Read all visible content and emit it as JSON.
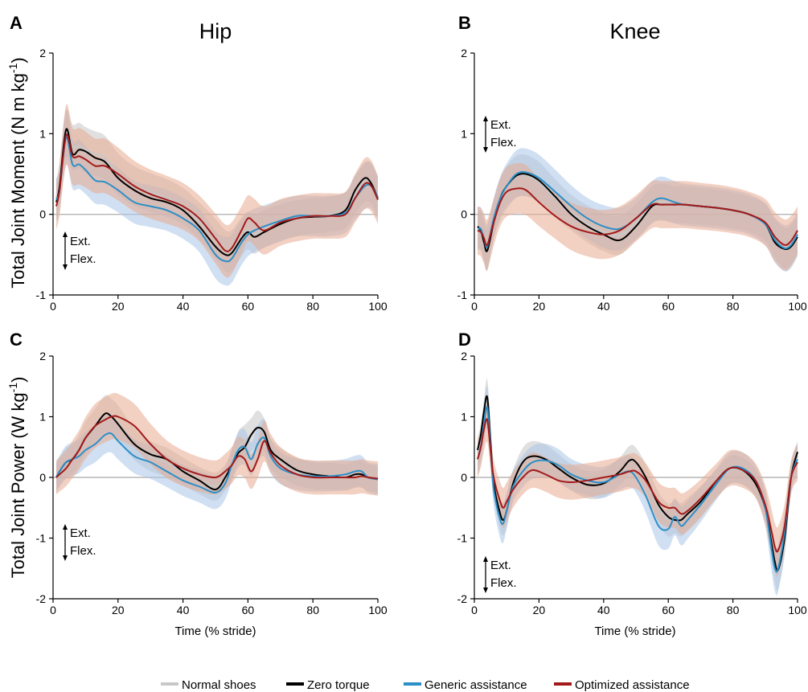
{
  "legend": [
    {
      "label": "Normal shoes",
      "color": "#c8c8c8"
    },
    {
      "label": "Zero torque",
      "color": "#000000"
    },
    {
      "label": "Generic assistance",
      "color": "#2b8fc8"
    },
    {
      "label": "Optimized assistance",
      "color": "#a31a1a"
    }
  ],
  "columns": {
    "hip": "Hip",
    "knee": "Knee"
  },
  "ylabels": {
    "moment": "Total Joint Moment (N m kg-1)",
    "power": "Total Joint Power (W kg-1)"
  },
  "annotation": {
    "ext": "Ext.",
    "flex": "Flex."
  },
  "xlabel": "Time (% stride)",
  "chart_data": [
    {
      "type": "line",
      "panel": "A",
      "title": "Hip",
      "xlabel": "",
      "ylabel": "Total Joint Moment (N m kg-1)",
      "xlim": [
        0,
        100
      ],
      "ylim": [
        -1,
        2
      ],
      "xticks": [
        0,
        20,
        40,
        60,
        80,
        100
      ],
      "yticks": [
        -1,
        0,
        1,
        2
      ],
      "x": [
        1,
        2,
        4,
        6,
        8,
        10,
        13,
        16,
        20,
        25,
        30,
        35,
        40,
        45,
        50,
        53,
        55,
        58,
        60,
        62,
        65,
        70,
        75,
        80,
        85,
        90,
        93,
        96,
        98,
        100
      ],
      "series": [
        {
          "name": "Normal shoes",
          "values": [
            0.2,
            0.4,
            1.0,
            0.83,
            0.85,
            0.8,
            0.75,
            0.7,
            0.5,
            0.35,
            0.27,
            0.2,
            0.1,
            -0.08,
            -0.3,
            -0.45,
            -0.45,
            -0.28,
            -0.2,
            -0.25,
            -0.18,
            -0.1,
            -0.05,
            -0.02,
            0.0,
            0.05,
            0.25,
            0.4,
            0.38,
            0.22
          ]
        },
        {
          "name": "Zero torque",
          "values": [
            0.15,
            0.35,
            1.05,
            0.75,
            0.8,
            0.78,
            0.7,
            0.65,
            0.45,
            0.3,
            0.2,
            0.15,
            0.05,
            -0.15,
            -0.4,
            -0.5,
            -0.48,
            -0.3,
            -0.22,
            -0.28,
            -0.22,
            -0.12,
            -0.05,
            -0.03,
            -0.02,
            0.05,
            0.3,
            0.45,
            0.38,
            0.2
          ]
        },
        {
          "name": "Generic assistance",
          "values": [
            0.18,
            0.3,
            0.95,
            0.62,
            0.62,
            0.55,
            0.42,
            0.4,
            0.3,
            0.15,
            0.1,
            0.05,
            -0.05,
            -0.2,
            -0.5,
            -0.58,
            -0.55,
            -0.35,
            -0.25,
            -0.2,
            -0.15,
            -0.08,
            -0.02,
            -0.02,
            -0.02,
            0.02,
            0.2,
            0.35,
            0.35,
            0.2
          ]
        },
        {
          "name": "Optimized assistance",
          "values": [
            0.1,
            0.3,
            0.98,
            0.72,
            0.72,
            0.68,
            0.6,
            0.6,
            0.5,
            0.35,
            0.25,
            0.18,
            0.1,
            -0.05,
            -0.3,
            -0.45,
            -0.42,
            -0.2,
            -0.05,
            -0.1,
            -0.2,
            -0.1,
            -0.05,
            -0.02,
            -0.02,
            0.0,
            0.2,
            0.38,
            0.35,
            0.18
          ]
        }
      ]
    },
    {
      "type": "line",
      "panel": "B",
      "title": "Knee",
      "xlabel": "",
      "ylabel": "",
      "xlim": [
        0,
        100
      ],
      "ylim": [
        -1,
        2
      ],
      "xticks": [
        0,
        20,
        40,
        60,
        80,
        100
      ],
      "yticks": [
        -1,
        0,
        1,
        2
      ],
      "x": [
        1,
        2,
        3,
        4,
        6,
        8,
        10,
        13,
        16,
        20,
        25,
        30,
        35,
        40,
        45,
        50,
        55,
        58,
        62,
        65,
        70,
        75,
        80,
        85,
        90,
        93,
        96,
        98,
        100
      ],
      "series": [
        {
          "name": "Normal shoes",
          "values": [
            -0.2,
            -0.2,
            -0.35,
            -0.42,
            -0.05,
            0.2,
            0.35,
            0.47,
            0.48,
            0.4,
            0.2,
            0.02,
            -0.12,
            -0.22,
            -0.26,
            -0.1,
            0.12,
            0.15,
            0.12,
            0.12,
            0.1,
            0.08,
            0.05,
            0.0,
            -0.1,
            -0.3,
            -0.42,
            -0.38,
            -0.25
          ]
        },
        {
          "name": "Zero torque",
          "values": [
            -0.15,
            -0.2,
            -0.35,
            -0.45,
            -0.1,
            0.2,
            0.35,
            0.48,
            0.5,
            0.42,
            0.22,
            0.0,
            -0.15,
            -0.25,
            -0.32,
            -0.15,
            0.1,
            0.12,
            0.12,
            0.12,
            0.1,
            0.08,
            0.05,
            0.0,
            -0.12,
            -0.35,
            -0.43,
            -0.4,
            -0.28
          ]
        },
        {
          "name": "Generic assistance",
          "values": [
            -0.18,
            -0.18,
            -0.3,
            -0.4,
            -0.05,
            0.2,
            0.35,
            0.5,
            0.52,
            0.45,
            0.28,
            0.1,
            -0.05,
            -0.15,
            -0.18,
            -0.05,
            0.15,
            0.2,
            0.15,
            0.12,
            0.1,
            0.08,
            0.05,
            0.0,
            -0.12,
            -0.32,
            -0.42,
            -0.38,
            -0.25
          ]
        },
        {
          "name": "Optimized assistance",
          "values": [
            -0.2,
            -0.22,
            -0.3,
            -0.38,
            -0.1,
            0.15,
            0.28,
            0.32,
            0.3,
            0.15,
            -0.02,
            -0.15,
            -0.22,
            -0.25,
            -0.2,
            -0.05,
            0.12,
            0.12,
            0.12,
            0.12,
            0.1,
            0.08,
            0.05,
            0.0,
            -0.1,
            -0.28,
            -0.38,
            -0.33,
            -0.2
          ]
        }
      ]
    },
    {
      "type": "line",
      "panel": "C",
      "title": "",
      "xlabel": "Time (% stride)",
      "ylabel": "Total Joint Power (W kg-1)",
      "xlim": [
        0,
        100
      ],
      "ylim": [
        -2,
        2
      ],
      "xticks": [
        0,
        20,
        40,
        60,
        80,
        100
      ],
      "yticks": [
        -2,
        -1,
        0,
        1,
        2
      ],
      "x": [
        1,
        2,
        4,
        6,
        8,
        10,
        13,
        16,
        18,
        20,
        25,
        30,
        35,
        40,
        45,
        50,
        53,
        55,
        57,
        59,
        61,
        63,
        65,
        67,
        70,
        75,
        80,
        85,
        90,
        93,
        95,
        97,
        100
      ],
      "series": [
        {
          "name": "Normal shoes",
          "values": [
            0.0,
            0.1,
            0.25,
            0.3,
            0.45,
            0.65,
            0.85,
            1.05,
            1.0,
            0.9,
            0.55,
            0.35,
            0.25,
            0.1,
            -0.05,
            -0.15,
            0.0,
            0.2,
            0.5,
            0.6,
            0.7,
            0.82,
            0.7,
            0.4,
            0.25,
            0.1,
            0.03,
            0.02,
            0.0,
            0.05,
            0.05,
            0.0,
            -0.03
          ]
        },
        {
          "name": "Zero torque",
          "values": [
            0.0,
            0.1,
            0.25,
            0.3,
            0.45,
            0.65,
            0.85,
            1.05,
            1.0,
            0.88,
            0.55,
            0.38,
            0.3,
            0.1,
            -0.05,
            -0.2,
            0.0,
            0.2,
            0.4,
            0.5,
            0.7,
            0.82,
            0.75,
            0.45,
            0.3,
            0.12,
            0.05,
            0.02,
            0.0,
            0.05,
            0.05,
            0.0,
            -0.03
          ]
        },
        {
          "name": "Generic assistance",
          "values": [
            0.0,
            0.1,
            0.25,
            0.3,
            0.35,
            0.45,
            0.55,
            0.7,
            0.72,
            0.6,
            0.35,
            0.25,
            0.1,
            -0.05,
            -0.15,
            -0.25,
            -0.1,
            0.2,
            0.45,
            0.5,
            0.3,
            0.55,
            0.65,
            0.35,
            0.15,
            0.05,
            0.02,
            0.02,
            0.05,
            0.1,
            0.1,
            0.0,
            -0.03
          ]
        },
        {
          "name": "Optimized assistance",
          "values": [
            0.0,
            0.05,
            0.15,
            0.3,
            0.45,
            0.65,
            0.85,
            0.95,
            1.0,
            1.0,
            0.85,
            0.55,
            0.3,
            0.15,
            0.05,
            0.0,
            0.1,
            0.2,
            0.35,
            0.3,
            0.1,
            0.3,
            0.6,
            0.4,
            0.2,
            0.05,
            0.0,
            0.0,
            0.0,
            0.0,
            0.02,
            0.0,
            -0.02
          ]
        }
      ]
    },
    {
      "type": "line",
      "panel": "D",
      "title": "",
      "xlabel": "Time (% stride)",
      "ylabel": "",
      "xlim": [
        0,
        100
      ],
      "ylim": [
        -2,
        2
      ],
      "xticks": [
        0,
        20,
        40,
        60,
        80,
        100
      ],
      "yticks": [
        -2,
        -1,
        0,
        1,
        2
      ],
      "x": [
        1,
        2,
        3,
        4,
        5,
        6,
        8,
        9,
        10,
        12,
        15,
        18,
        22,
        26,
        30,
        35,
        40,
        45,
        48,
        50,
        53,
        57,
        60,
        62,
        64,
        66,
        70,
        75,
        79,
        83,
        87,
        90,
        92,
        93,
        94,
        96,
        98,
        100
      ],
      "series": [
        {
          "name": "Normal shoes",
          "values": [
            0.4,
            0.6,
            1.0,
            1.3,
            0.6,
            -0.1,
            -0.6,
            -0.68,
            -0.55,
            -0.1,
            0.25,
            0.35,
            0.3,
            0.15,
            0.0,
            -0.12,
            -0.1,
            0.1,
            0.28,
            0.25,
            0.0,
            -0.5,
            -0.7,
            -0.65,
            -0.7,
            -0.6,
            -0.4,
            -0.1,
            0.12,
            0.1,
            -0.1,
            -0.5,
            -1.1,
            -1.4,
            -1.5,
            -1.0,
            0.0,
            0.35
          ]
        },
        {
          "name": "Zero torque",
          "values": [
            0.45,
            0.7,
            1.1,
            1.32,
            0.6,
            -0.1,
            -0.6,
            -0.7,
            -0.55,
            -0.1,
            0.25,
            0.35,
            0.3,
            0.15,
            0.0,
            -0.12,
            -0.1,
            0.1,
            0.28,
            0.25,
            0.0,
            -0.45,
            -0.65,
            -0.7,
            -0.7,
            -0.6,
            -0.4,
            -0.05,
            0.15,
            0.12,
            -0.1,
            -0.5,
            -1.1,
            -1.4,
            -1.52,
            -1.0,
            0.0,
            0.42
          ]
        },
        {
          "name": "Generic assistance",
          "values": [
            0.3,
            0.5,
            0.9,
            1.15,
            0.5,
            -0.2,
            -0.7,
            -0.75,
            -0.55,
            -0.15,
            0.1,
            0.25,
            0.28,
            0.2,
            0.05,
            -0.05,
            -0.08,
            0.05,
            0.1,
            0.0,
            -0.3,
            -0.8,
            -0.85,
            -0.65,
            -0.8,
            -0.7,
            -0.45,
            -0.1,
            0.15,
            0.15,
            -0.05,
            -0.5,
            -1.2,
            -1.5,
            -1.5,
            -0.9,
            0.0,
            0.3
          ]
        },
        {
          "name": "Optimized assistance",
          "values": [
            0.3,
            0.5,
            0.8,
            0.95,
            0.45,
            0.0,
            -0.4,
            -0.5,
            -0.4,
            -0.2,
            0.0,
            0.12,
            0.05,
            -0.05,
            -0.08,
            -0.05,
            0.0,
            0.05,
            0.1,
            0.1,
            -0.05,
            -0.4,
            -0.5,
            -0.5,
            -0.6,
            -0.55,
            -0.35,
            -0.05,
            0.15,
            0.12,
            -0.05,
            -0.45,
            -0.9,
            -1.15,
            -1.2,
            -0.8,
            0.0,
            0.25
          ]
        }
      ]
    }
  ]
}
